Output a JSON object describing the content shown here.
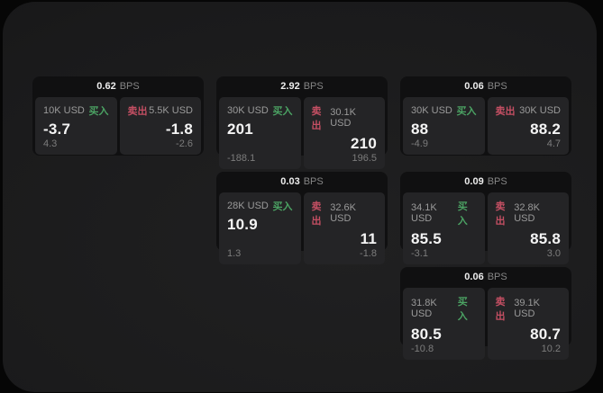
{
  "labels": {
    "buy": "买入",
    "sell": "卖出",
    "bps_unit": "BPS"
  },
  "colors": {
    "buy_green": "#4ba263",
    "sell_red": "#c44f63",
    "window_bg": "#1a1a1b",
    "card_bg": "#101011",
    "pane_bg": "#242426"
  },
  "cards": [
    {
      "row": 1,
      "col": 1,
      "bps": "0.62",
      "buy": {
        "size": "10K USD",
        "price": "-3.7",
        "delta": "4.3"
      },
      "sell": {
        "size": "5.5K USD",
        "price": "-1.8",
        "delta": "-2.6"
      }
    },
    {
      "row": 1,
      "col": 2,
      "bps": "2.92",
      "buy": {
        "size": "30K USD",
        "price": "201",
        "delta": "-188.1"
      },
      "sell": {
        "size": "30.1K USD",
        "price": "210",
        "delta": "196.5"
      }
    },
    {
      "row": 1,
      "col": 3,
      "bps": "0.06",
      "buy": {
        "size": "30K USD",
        "price": "88",
        "delta": "-4.9"
      },
      "sell": {
        "size": "30K USD",
        "price": "88.2",
        "delta": "4.7"
      }
    },
    {
      "row": 2,
      "col": 2,
      "bps": "0.03",
      "buy": {
        "size": "28K USD",
        "price": "10.9",
        "delta": "1.3"
      },
      "sell": {
        "size": "32.6K USD",
        "price": "11",
        "delta": "-1.8"
      }
    },
    {
      "row": 2,
      "col": 3,
      "bps": "0.09",
      "buy": {
        "size": "34.1K USD",
        "price": "85.5",
        "delta": "-3.1"
      },
      "sell": {
        "size": "32.8K USD",
        "price": "85.8",
        "delta": "3.0"
      }
    },
    {
      "row": 3,
      "col": 3,
      "bps": "0.06",
      "buy": {
        "size": "31.8K USD",
        "price": "80.5",
        "delta": "-10.8"
      },
      "sell": {
        "size": "39.1K USD",
        "price": "80.7",
        "delta": "10.2"
      }
    }
  ]
}
